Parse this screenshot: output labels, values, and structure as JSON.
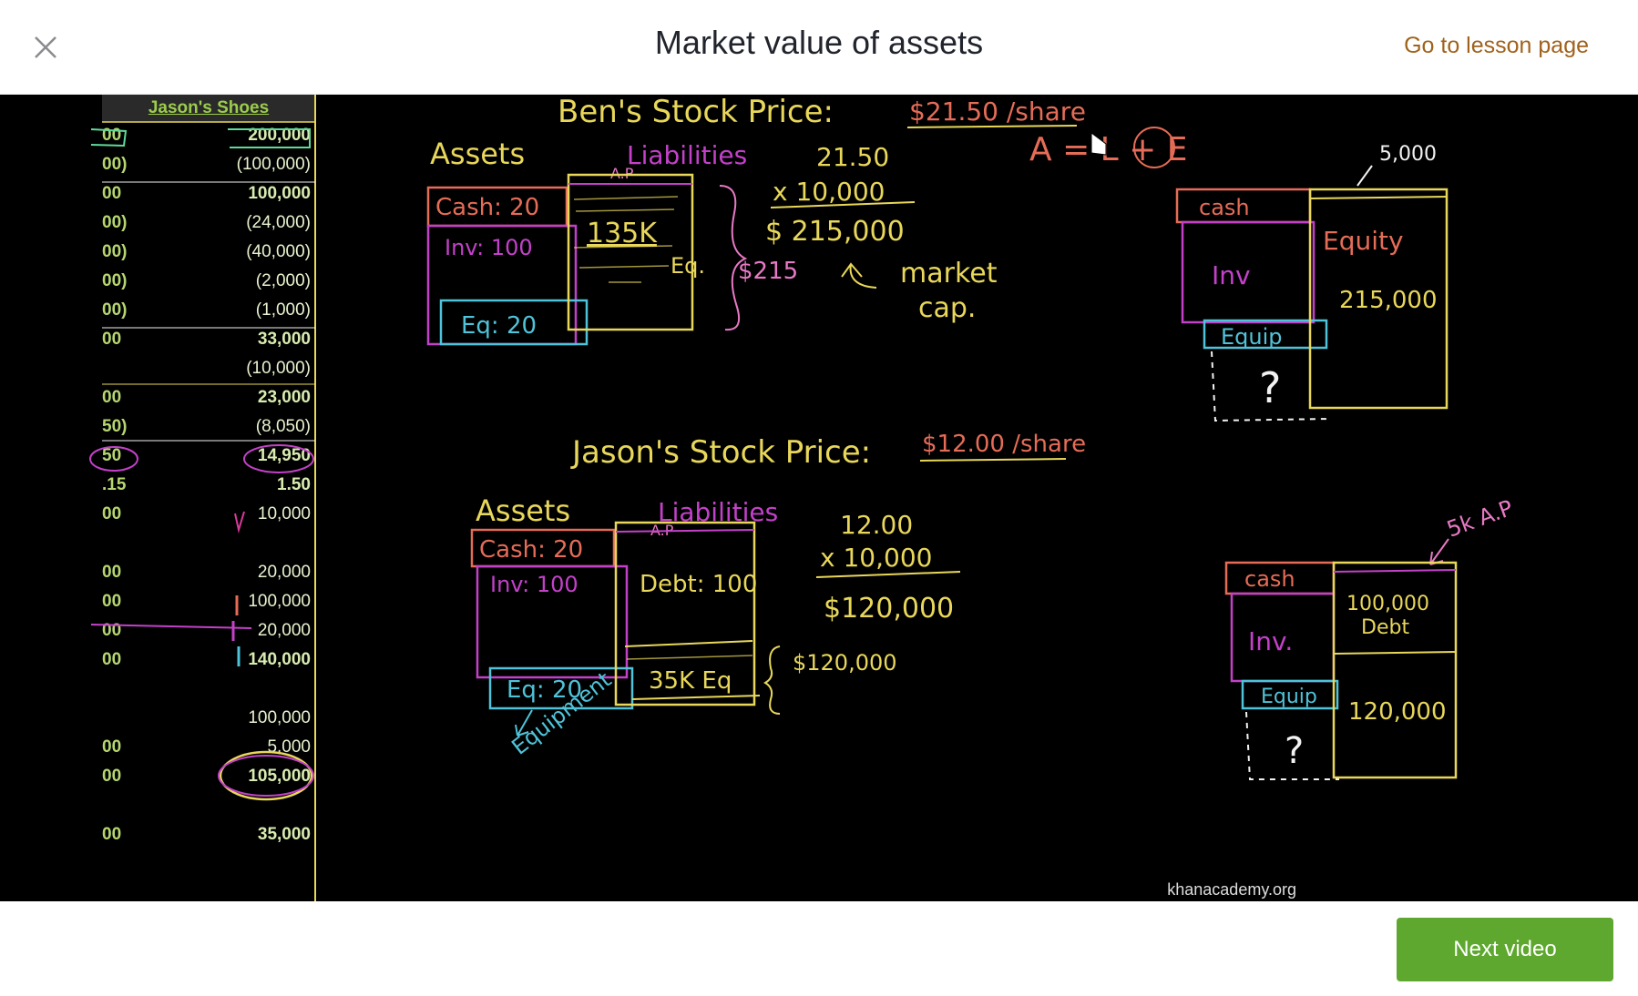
{
  "header": {
    "title": "Market value of assets",
    "lesson_link": "Go to lesson page"
  },
  "footer": {
    "next_label": "Next video"
  },
  "video": {
    "watermark": "khanacademy.org",
    "spreadsheet": {
      "header": "Jason's Shoes",
      "rows": [
        {
          "left": "00",
          "right": "200,000",
          "bold": true
        },
        {
          "left": "00)",
          "right": "(100,000)",
          "bold": false
        },
        {
          "left": "00",
          "right": "100,000",
          "bold": true
        },
        {
          "left": "00)",
          "right": "(24,000)",
          "bold": false
        },
        {
          "left": "00)",
          "right": "(40,000)",
          "bold": false
        },
        {
          "left": "00)",
          "right": "(2,000)",
          "bold": false
        },
        {
          "left": "00)",
          "right": "(1,000)",
          "bold": false
        },
        {
          "left": "00",
          "right": "33,000",
          "bold": true
        },
        {
          "left": "",
          "right": "(10,000)",
          "bold": false
        },
        {
          "left": "00",
          "right": "23,000",
          "bold": true
        },
        {
          "left": "50)",
          "right": "(8,050)",
          "bold": false
        },
        {
          "left": "50",
          "right": "14,950",
          "bold": true
        },
        {
          "left": ".15",
          "right": "1.50",
          "bold": true
        },
        {
          "left": "00",
          "right": "10,000",
          "bold": false
        },
        {
          "left": "",
          "right": "",
          "bold": false
        },
        {
          "left": "00",
          "right": "20,000",
          "bold": false
        },
        {
          "left": "00",
          "right": "100,000",
          "bold": false
        },
        {
          "left": "00",
          "right": "20,000",
          "bold": false
        },
        {
          "left": "00",
          "right": "140,000",
          "bold": true
        },
        {
          "left": "",
          "right": "",
          "bold": false
        },
        {
          "left": "",
          "right": "100,000",
          "bold": false
        },
        {
          "left": "00",
          "right": "5,000",
          "bold": false
        },
        {
          "left": "00",
          "right": "105,000",
          "bold": true
        },
        {
          "left": "",
          "right": "",
          "bold": false
        },
        {
          "left": "00",
          "right": "35,000",
          "bold": true
        }
      ]
    },
    "ben": {
      "title": "Ben's Stock Price:",
      "price": "$21.50 /share",
      "assets": "Assets",
      "liabilities": "Liabilities",
      "ap": "A.P",
      "cash": "Cash: 20",
      "inv": "Inv: 100",
      "eq": "Eq: 20",
      "k135": "135K",
      "eq_short": "Eq.",
      "calc1": "21.50",
      "calc2": "x 10,000",
      "calc3": "$ 215,000",
      "brace_val": "$215",
      "market": "market",
      "cap": "cap.",
      "equation": "A = L + E",
      "right_top": "5,000",
      "right_cash": "cash",
      "right_equity": "Equity",
      "right_inv": "Inv",
      "right_equity_val": "215,000",
      "right_equip": "Equip",
      "right_question": "?"
    },
    "jason": {
      "title": "Jason's Stock Price:",
      "price": "$12.00 /share",
      "assets": "Assets",
      "liabilities": "Liabilities",
      "ap": "A.P",
      "cash": "Cash: 20",
      "inv": "Inv: 100",
      "debt": "Debt: 100",
      "eq": "Eq: 20",
      "eq35": "35K Eq",
      "equipment": "Equipment",
      "calc1": "12.00",
      "calc2": "x 10,000",
      "calc3": "$120,000",
      "brace_val": "$120,000",
      "right_top": "5k A.P",
      "right_cash": "cash",
      "right_inv": "Inv.",
      "right_debt1": "100,000",
      "right_debt2": "Debt",
      "right_equip": "Equip",
      "right_val": "120,000",
      "right_question": "?"
    }
  },
  "colors": {
    "accent_orange": "#a0621b",
    "next_green": "#5fa82f",
    "chalk_yellow": "#e8d75a",
    "chalk_pink": "#e879c5",
    "chalk_magenta": "#c341c9",
    "chalk_red": "#e56c57",
    "chalk_teal": "#4fc3d9",
    "chalk_white": "#f2f2f2"
  }
}
